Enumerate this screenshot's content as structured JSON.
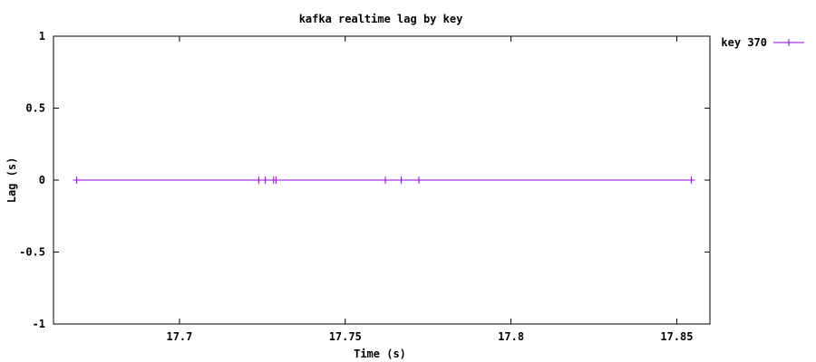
{
  "chart_data": {
    "type": "line",
    "title": "kafka realtime lag by key",
    "xlabel": "Time (s)",
    "ylabel": "Lag (s)",
    "xlim": [
      17.662,
      17.86
    ],
    "ylim": [
      -1,
      1
    ],
    "x_ticks": [
      17.7,
      17.75,
      17.8,
      17.85
    ],
    "x_tick_labels": [
      "17.7",
      "17.75",
      "17.8",
      "17.85"
    ],
    "y_ticks": [
      1,
      0.5,
      0,
      -0.5,
      -1
    ],
    "y_tick_labels": [
      "1",
      "0.5",
      "0",
      "-0.5",
      "-1"
    ],
    "grid": false,
    "legend": "outside-top-right",
    "series": [
      {
        "name": "key 370",
        "color": "#9400d3",
        "marker": "plus",
        "x": [
          17.669,
          17.7239,
          17.7259,
          17.7284,
          17.7291,
          17.7621,
          17.7669,
          17.7722,
          17.8544
        ],
        "y": [
          0,
          0,
          0,
          0,
          0,
          0,
          0,
          0,
          0
        ]
      }
    ]
  }
}
